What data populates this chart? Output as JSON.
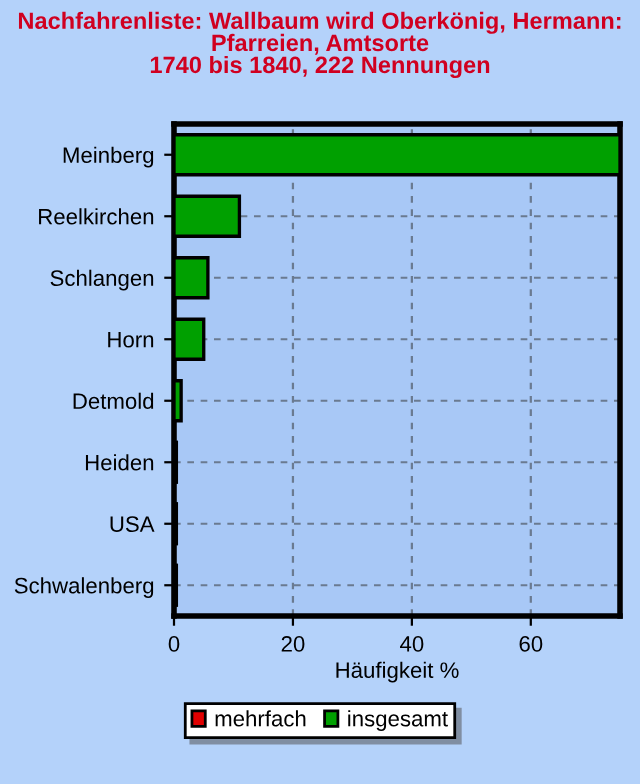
{
  "chart_data": {
    "type": "bar",
    "orientation": "horizontal",
    "title": "Nachfahrenliste: Wallbaum wird Oberkönig, Hermann:\nPfarreien, Amtsorte\n1740 bis 1840, 222 Nennungen",
    "xlabel": "Häufigkeit %",
    "categories": [
      "Meinberg",
      "Reelkirchen",
      "Schlangen",
      "Horn",
      "Detmold",
      "Heiden",
      "USA",
      "Schwalenberg"
    ],
    "series": [
      {
        "name": "mehrfach",
        "color": "#e00000",
        "values": [
          null,
          null,
          null,
          null,
          null,
          null,
          null,
          null
        ]
      },
      {
        "name": "insgesamt",
        "color": "#00a000",
        "values": [
          75,
          11,
          5.7,
          5,
          1.2,
          0.4,
          0.4,
          0.4
        ]
      }
    ],
    "xlim": [
      0,
      75
    ],
    "xticks": [
      0,
      20,
      40,
      60
    ],
    "grid": true,
    "legend": "bottom"
  }
}
